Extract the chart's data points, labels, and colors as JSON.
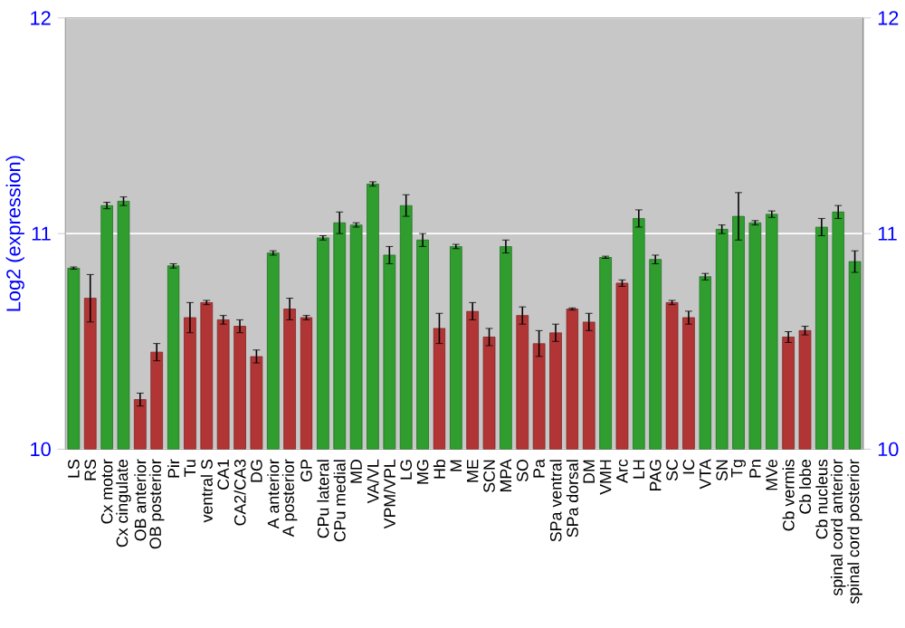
{
  "chart_data": {
    "type": "bar",
    "ylabel": "Log2 (expression)",
    "categories": [
      "LS",
      "RS",
      "Cx motor",
      "Cx cingulate",
      "OB anterior",
      "OB posterior",
      "Pir",
      "Tu",
      "ventral S",
      "CA1",
      "CA2/CA3",
      "DG",
      "A anterior",
      "A posterior",
      "GP",
      "CPu lateral",
      "CPu medial",
      "MD",
      "VA/VL",
      "VPM/VPL",
      "LG",
      "MG",
      "Hb",
      "M",
      "ME",
      "SCN",
      "MPA",
      "SO",
      "Pa",
      "SPa ventral",
      "SPa dorsal",
      "DM",
      "VMH",
      "Arc",
      "LH",
      "PAG",
      "SC",
      "IC",
      "VTA",
      "SN",
      "Tg",
      "Pn",
      "MVe",
      "Cb vermis",
      "Cb lobe",
      "Cb nucleus",
      "spinal cord anterior",
      "spinal cord posterior"
    ],
    "values": [
      10.84,
      10.7,
      11.13,
      11.15,
      10.23,
      10.45,
      10.85,
      10.61,
      10.68,
      10.6,
      10.57,
      10.43,
      10.91,
      10.65,
      10.61,
      10.98,
      11.05,
      11.04,
      11.23,
      10.9,
      11.13,
      10.97,
      10.56,
      10.94,
      10.64,
      10.52,
      10.94,
      10.62,
      10.49,
      10.54,
      10.65,
      10.59,
      10.89,
      10.77,
      11.07,
      10.88,
      10.68,
      10.61,
      10.8,
      11.02,
      11.08,
      11.05,
      11.09,
      10.52,
      10.55,
      11.03,
      11.1,
      10.87
    ],
    "errors": [
      0.005,
      0.11,
      0.015,
      0.02,
      0.03,
      0.04,
      0.01,
      0.07,
      0.01,
      0.02,
      0.03,
      0.03,
      0.01,
      0.05,
      0.01,
      0.01,
      0.05,
      0.01,
      0.01,
      0.04,
      0.05,
      0.03,
      0.07,
      0.01,
      0.04,
      0.04,
      0.03,
      0.04,
      0.06,
      0.04,
      0.005,
      0.04,
      0.005,
      0.015,
      0.04,
      0.02,
      0.01,
      0.03,
      0.015,
      0.02,
      0.11,
      0.01,
      0.015,
      0.025,
      0.02,
      0.04,
      0.03,
      0.05
    ],
    "colors": [
      "#2f9e2f",
      "#b23535",
      "#2f9e2f",
      "#2f9e2f",
      "#b23535",
      "#b23535",
      "#2f9e2f",
      "#b23535",
      "#b23535",
      "#b23535",
      "#b23535",
      "#b23535",
      "#2f9e2f",
      "#b23535",
      "#b23535",
      "#2f9e2f",
      "#2f9e2f",
      "#2f9e2f",
      "#2f9e2f",
      "#2f9e2f",
      "#2f9e2f",
      "#2f9e2f",
      "#b23535",
      "#2f9e2f",
      "#b23535",
      "#b23535",
      "#2f9e2f",
      "#b23535",
      "#b23535",
      "#b23535",
      "#b23535",
      "#b23535",
      "#2f9e2f",
      "#b23535",
      "#2f9e2f",
      "#2f9e2f",
      "#b23535",
      "#b23535",
      "#2f9e2f",
      "#2f9e2f",
      "#2f9e2f",
      "#2f9e2f",
      "#2f9e2f",
      "#b23535",
      "#b23535",
      "#2f9e2f",
      "#2f9e2f",
      "#2f9e2f"
    ],
    "ylim": [
      10,
      12
    ],
    "yticks": [
      10,
      11,
      12
    ],
    "y2lim": [
      10,
      12
    ],
    "y2ticks": [
      10,
      11,
      12
    ],
    "grid": "y"
  }
}
